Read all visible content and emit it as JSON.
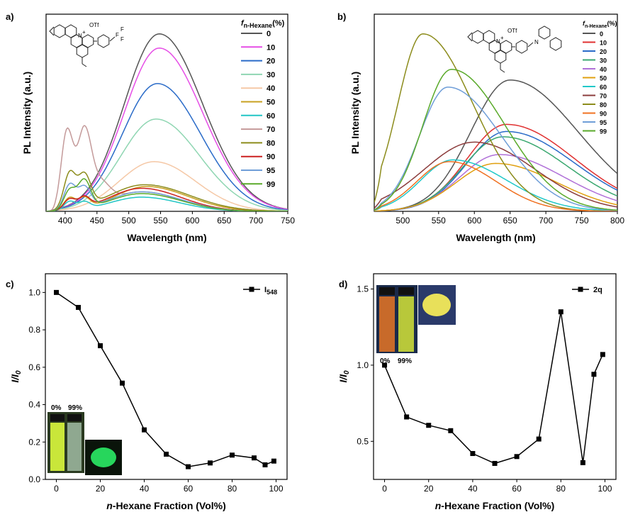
{
  "chart_data": [
    {
      "panel": "a)",
      "type": "line",
      "xlabel": "Wavelength (nm)",
      "ylabel": "PL Intensity (a.u.)",
      "xlim": [
        370,
        750
      ],
      "ylim": [
        0,
        100
      ],
      "xticks": [
        400,
        450,
        500,
        550,
        600,
        650,
        700,
        750
      ],
      "yticks_shown": false,
      "legend_title_main": "f",
      "legend_title_sub": "n-Hexane",
      "legend_title_unit": "(%)",
      "legend_position": "top-right",
      "molecule_labels": [
        "N",
        "+",
        "OTf",
        "F"
      ],
      "series": [
        {
          "name": "0",
          "color": "#555555",
          "peaks": [
            [
              548,
              100,
              55,
              68
            ]
          ]
        },
        {
          "name": "10",
          "color": "#e64ee6",
          "peaks": [
            [
              548,
              92,
              55,
              68
            ]
          ]
        },
        {
          "name": "20",
          "color": "#2a6bc8",
          "peaks": [
            [
              545,
              72,
              55,
              68
            ]
          ]
        },
        {
          "name": "30",
          "color": "#8fd6b2",
          "peaks": [
            [
              543,
              52,
              55,
              68
            ]
          ]
        },
        {
          "name": "40",
          "color": "#f5c8a6",
          "peaks": [
            [
              540,
              28,
              55,
              65
            ]
          ]
        },
        {
          "name": "50",
          "color": "#c8a020",
          "peaks": [
            [
              407,
              7,
              9,
              9
            ],
            [
              430,
              6,
              9,
              9
            ],
            [
              528,
              14,
              50,
              65
            ]
          ]
        },
        {
          "name": "60",
          "color": "#22c6c6",
          "peaks": [
            [
              407,
              5,
              9,
              9
            ],
            [
              430,
              4,
              9,
              9
            ],
            [
              520,
              8,
              50,
              60
            ]
          ]
        },
        {
          "name": "70",
          "color": "#c49a9a",
          "peaks": [
            [
              403,
              45,
              9,
              10
            ],
            [
              430,
              42,
              10,
              11
            ],
            [
              455,
              12,
              15,
              15
            ],
            [
              520,
              11,
              50,
              60
            ]
          ]
        },
        {
          "name": "80",
          "color": "#8c8c1c",
          "peaks": [
            [
              407,
              20,
              9,
              9
            ],
            [
              430,
              18,
              10,
              10
            ],
            [
              525,
              15,
              55,
              70
            ]
          ]
        },
        {
          "name": "90",
          "color": "#cc2020",
          "peaks": [
            [
              407,
              6,
              9,
              9
            ],
            [
              430,
              6,
              9,
              9
            ],
            [
              520,
              13,
              50,
              62
            ]
          ]
        },
        {
          "name": "95",
          "color": "#6f9ed8",
          "peaks": [
            [
              407,
              14,
              9,
              9
            ],
            [
              430,
              12,
              10,
              10
            ],
            [
              520,
              11,
              50,
              62
            ]
          ]
        },
        {
          "name": "99",
          "color": "#5aaa2a",
          "peaks": [
            [
              407,
              11,
              9,
              9
            ],
            [
              430,
              16,
              10,
              10
            ],
            [
              520,
              10,
              50,
              62
            ]
          ]
        }
      ]
    },
    {
      "panel": "b)",
      "type": "line",
      "xlabel": "Wavelength (nm)",
      "ylabel": "PL Intensity (a.u.)",
      "xlim": [
        460,
        800
      ],
      "ylim": [
        0,
        100
      ],
      "xticks": [
        500,
        550,
        600,
        650,
        700,
        750,
        800
      ],
      "yticks_shown": false,
      "legend_title_main": "f",
      "legend_title_sub": "n-Hexane",
      "legend_title_unit": "(%)",
      "legend_position": "top-right",
      "molecule_labels": [
        "N",
        "+",
        "OTf",
        "N"
      ],
      "series": [
        {
          "name": "0",
          "color": "#555555",
          "peaks": [
            [
              650,
              74,
              55,
              95
            ]
          ]
        },
        {
          "name": "10",
          "color": "#e03030",
          "peaks": [
            [
              645,
              49,
              55,
              95
            ]
          ]
        },
        {
          "name": "20",
          "color": "#2a6bc8",
          "peaks": [
            [
              645,
              45,
              55,
              95
            ]
          ]
        },
        {
          "name": "30",
          "color": "#3aa870",
          "peaks": [
            [
              640,
              42,
              55,
              90
            ]
          ]
        },
        {
          "name": "40",
          "color": "#b070d8",
          "peaks": [
            [
              635,
              32,
              55,
              90
            ]
          ]
        },
        {
          "name": "50",
          "color": "#e0a010",
          "peaks": [
            [
              630,
              27,
              55,
              85
            ]
          ]
        },
        {
          "name": "60",
          "color": "#20c8c8",
          "peaks": [
            [
              570,
              29,
              45,
              75
            ]
          ]
        },
        {
          "name": "70",
          "color": "#8c3c3c",
          "peaks": [
            [
              600,
              39,
              70,
              85
            ]
          ]
        },
        {
          "name": "80",
          "color": "#8c8c1c",
          "peaks": [
            [
              528,
              100,
              35,
              70
            ]
          ]
        },
        {
          "name": "90",
          "color": "#f07020",
          "peaks": [
            [
              565,
              28,
              45,
              65
            ]
          ]
        },
        {
          "name": "95",
          "color": "#6f9ed8",
          "peaks": [
            [
              563,
              70,
              40,
              75
            ]
          ]
        },
        {
          "name": "99",
          "color": "#5aaa2a",
          "peaks": [
            [
              568,
              80,
              40,
              75
            ]
          ]
        }
      ]
    },
    {
      "panel": "c)",
      "type": "line",
      "xlabel_prefix": "n",
      "xlabel_rest": "-Hexane  Fraction (Vol%)",
      "ylabel": "I/I",
      "ylabel_sub": "0",
      "xlim": [
        -5,
        105
      ],
      "ylim": [
        0,
        1.1
      ],
      "xticks": [
        0,
        20,
        40,
        60,
        80,
        100
      ],
      "yticks": [
        0.0,
        0.2,
        0.4,
        0.6,
        0.8,
        1.0
      ],
      "legend_main": "I",
      "legend_sub": "548",
      "legend_position": "top-right",
      "inset_labels": [
        "0%",
        "99%"
      ],
      "x": [
        0,
        10,
        20,
        30,
        40,
        50,
        60,
        70,
        80,
        90,
        95,
        99
      ],
      "y": [
        1.0,
        0.92,
        0.715,
        0.515,
        0.265,
        0.135,
        0.068,
        0.088,
        0.13,
        0.115,
        0.078,
        0.098
      ]
    },
    {
      "panel": "d)",
      "type": "line",
      "xlabel_prefix": "n",
      "xlabel_rest": "-Hexane  Fraction (Vol%)",
      "ylabel": "I/I",
      "ylabel_sub": "0",
      "xlim": [
        -5,
        105
      ],
      "ylim": [
        0.25,
        1.6
      ],
      "xticks": [
        0,
        20,
        40,
        60,
        80,
        100
      ],
      "yticks": [
        0.5,
        1.0,
        1.5
      ],
      "legend_main": "2q",
      "legend_position": "top-right",
      "inset_labels": [
        "0%",
        "99%"
      ],
      "x": [
        0,
        10,
        20,
        30,
        40,
        50,
        60,
        70,
        80,
        90,
        95,
        99
      ],
      "y": [
        1.0,
        0.66,
        0.605,
        0.57,
        0.42,
        0.355,
        0.4,
        0.515,
        1.35,
        0.36,
        0.94,
        1.07
      ]
    }
  ]
}
